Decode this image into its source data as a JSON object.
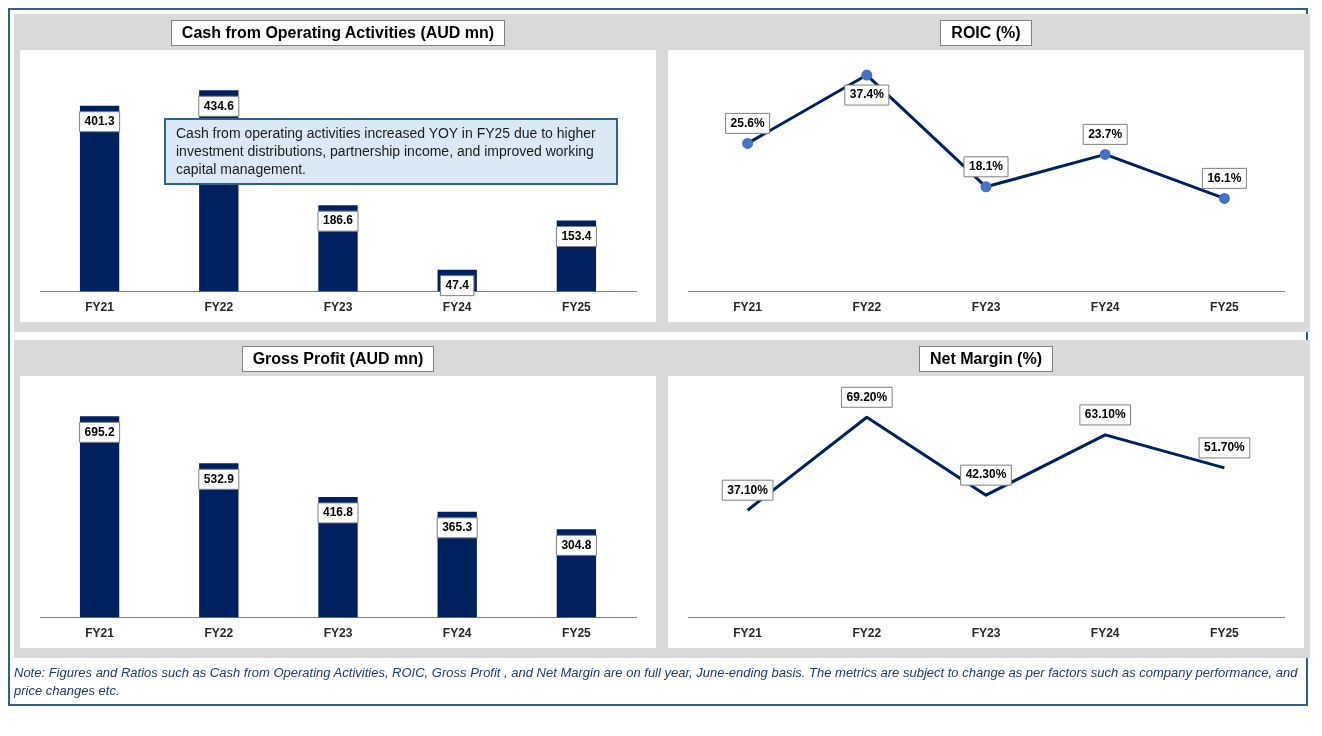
{
  "chart_data": [
    {
      "type": "bar",
      "title": "Cash from Operating Activities (AUD mn)",
      "categories": [
        "FY21",
        "FY22",
        "FY23",
        "FY24",
        "FY25"
      ],
      "values": [
        401.3,
        434.6,
        186.6,
        47.4,
        153.4
      ],
      "color": "#002060",
      "data_labels": true,
      "tick_labels": "x",
      "annotations": [
        "Cash from operating activities increased YOY in FY25 due to higher investment distributions, partnership income, and improved working capital management."
      ]
    },
    {
      "type": "line",
      "title": "ROIC (%)",
      "categories": [
        "FY21",
        "FY22",
        "FY23",
        "FY24",
        "FY25"
      ],
      "values": [
        25.6,
        37.4,
        18.1,
        23.7,
        16.1
      ],
      "value_labels": [
        "25.6%",
        "37.4%",
        "18.1%",
        "23.7%",
        "16.1%"
      ],
      "color": "#002060",
      "marker": "circle",
      "tick_labels": "x"
    },
    {
      "type": "bar",
      "title": "Gross Profit (AUD mn)",
      "categories": [
        "FY21",
        "FY22",
        "FY23",
        "FY24",
        "FY25"
      ],
      "values": [
        695.2,
        532.9,
        416.8,
        365.3,
        304.8
      ],
      "color": "#002060",
      "data_labels": true,
      "tick_labels": "x"
    },
    {
      "type": "line",
      "title": "Net Margin (%)",
      "categories": [
        "FY21",
        "FY22",
        "FY23",
        "FY24",
        "FY25"
      ],
      "values": [
        37.1,
        69.2,
        42.3,
        63.1,
        51.7
      ],
      "value_labels": [
        "37.10%",
        "69.20%",
        "42.30%",
        "63.10%",
        "51.70%"
      ],
      "color": "#002060",
      "marker": "none",
      "tick_labels": "x",
      "annotations": [
        "Note: Figures and Ratios such as Cash from Operating Activities, ROIC, Gross Profit , and Net Margin are on full year, June-ending basis. The metrics are subject to change as per factors such as company performance, and price changes etc."
      ]
    }
  ]
}
